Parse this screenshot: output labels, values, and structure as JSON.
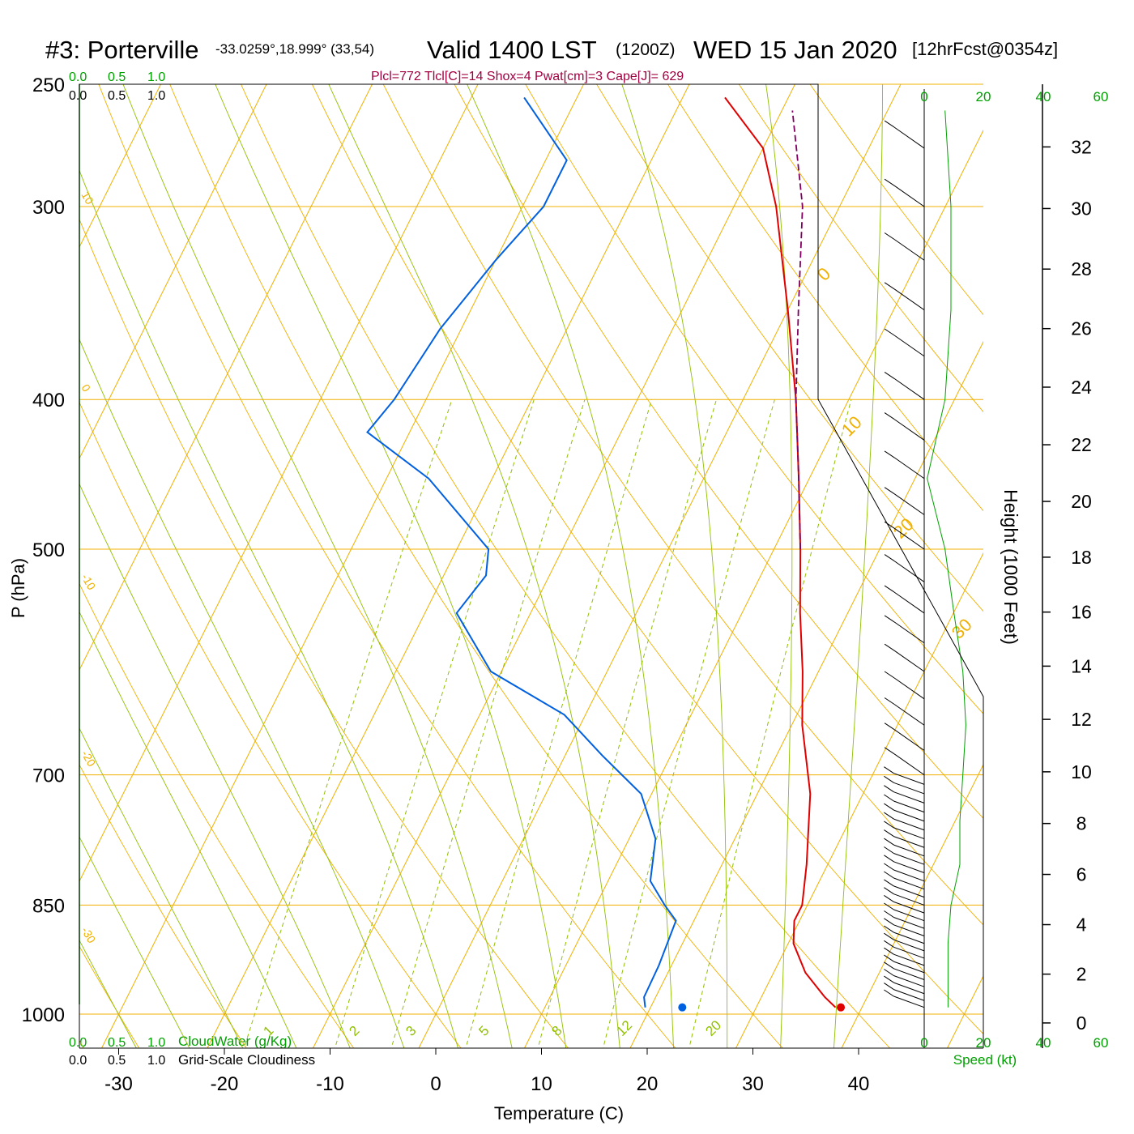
{
  "title": {
    "station": "#3: Porterville",
    "coords": "-33.0259°,18.999° (33,54)",
    "valid": "Valid 1400 LST",
    "utc": "(1200Z)",
    "date": "WED 15 Jan 2020",
    "fcst": "[12hrFcst@0354z]"
  },
  "params_line": "Plcl=772 Tlcl[C]=14 Shox=4 Pwat[cm]=3 Cape[J]= 629",
  "cloud_scale_green": [
    "0.0",
    "0.5",
    "1.0"
  ],
  "cloud_scale_black": [
    "0.0",
    "0.5",
    "1.0"
  ],
  "legend": {
    "cloudwater": "CloudWater (g/Kg)",
    "cloudiness": "Grid-Scale Cloudiness"
  },
  "wind_axis": {
    "ticks": [
      "0",
      "20",
      "40",
      "60"
    ],
    "label": "Speed (kt)"
  },
  "colors": {
    "temperature": "#e00000",
    "dewpoint": "#0060e0",
    "parcel": "#800060",
    "isotherm": "#f0b000",
    "dry_adiabat": "#f0b000",
    "moist_adiabat": "#90c000",
    "mixing_ratio": "#90c000",
    "green_text": "#00a000",
    "params_text": "#a00040"
  },
  "chart_data": {
    "type": "line",
    "title": "#3: Porterville  Valid 1400 LST (1200Z) WED 15 Jan 2020",
    "xlabel": "Temperature (C)",
    "ylabel": "P (hPa)",
    "y2label": "Height (1000 Feet)",
    "x_ticks": [
      "-30",
      "-20",
      "-10",
      "0",
      "10",
      "20",
      "30",
      "40"
    ],
    "y_ticks": [
      "250",
      "300",
      "400",
      "500",
      "700",
      "850",
      "1000"
    ],
    "height_ticks": [
      "0",
      "2",
      "4",
      "6",
      "8",
      "10",
      "12",
      "14",
      "16",
      "18",
      "20",
      "22",
      "24",
      "26",
      "28",
      "30",
      "32"
    ],
    "isotherm_labels": [
      "10",
      "0",
      "-10",
      "-20",
      "-30",
      "0",
      "10",
      "20",
      "30"
    ],
    "mixing_ratio_labels": [
      "1",
      "2",
      "3",
      "5",
      "8",
      "12",
      "20"
    ],
    "skew": "skew-T log-P",
    "series": [
      {
        "name": "Temperature",
        "points": [
          [
            37.5,
            990
          ],
          [
            36,
            975
          ],
          [
            33,
            940
          ],
          [
            30.5,
            900
          ],
          [
            29.5,
            870
          ],
          [
            29.5,
            850
          ],
          [
            28,
            800
          ],
          [
            25,
            720
          ],
          [
            21,
            650
          ],
          [
            18.5,
            600
          ],
          [
            15.5,
            550
          ],
          [
            12.5,
            500
          ],
          [
            9,
            450
          ],
          [
            5,
            400
          ],
          [
            0,
            350
          ],
          [
            -6,
            300
          ],
          [
            -10,
            275
          ],
          [
            -16,
            255
          ]
        ]
      },
      {
        "name": "Dewpoint",
        "points": [
          [
            19.5,
            990
          ],
          [
            18.9,
            975
          ],
          [
            18.8,
            930
          ],
          [
            18.3,
            870
          ],
          [
            16.5,
            850
          ],
          [
            14,
            820
          ],
          [
            12.5,
            770
          ],
          [
            9,
            720
          ],
          [
            3.5,
            680
          ],
          [
            -2,
            640
          ],
          [
            -11,
            600
          ],
          [
            -17,
            550
          ],
          [
            -16,
            520
          ],
          [
            -17,
            500
          ],
          [
            -26,
            450
          ],
          [
            -34,
            420
          ],
          [
            -33,
            400
          ],
          [
            -32,
            360
          ],
          [
            -30,
            325
          ],
          [
            -28,
            300
          ],
          [
            -28,
            280
          ],
          [
            -35,
            255
          ]
        ]
      },
      {
        "name": "Parcel",
        "points": [
          [
            12.5,
            500
          ],
          [
            9,
            450
          ],
          [
            5,
            400
          ],
          [
            1,
            350
          ],
          [
            -3.5,
            300
          ],
          [
            -9,
            260
          ]
        ]
      }
    ],
    "surface_temperature": 38,
    "surface_dewpoint": 23,
    "wind_speed_profile": [
      [
        990,
        8
      ],
      [
        900,
        8
      ],
      [
        850,
        9
      ],
      [
        800,
        12
      ],
      [
        750,
        12
      ],
      [
        700,
        13
      ],
      [
        650,
        14
      ],
      [
        600,
        13
      ],
      [
        550,
        10
      ],
      [
        500,
        7
      ],
      [
        450,
        1
      ],
      [
        400,
        7
      ],
      [
        350,
        9
      ],
      [
        300,
        9
      ],
      [
        260,
        7
      ]
    ]
  }
}
